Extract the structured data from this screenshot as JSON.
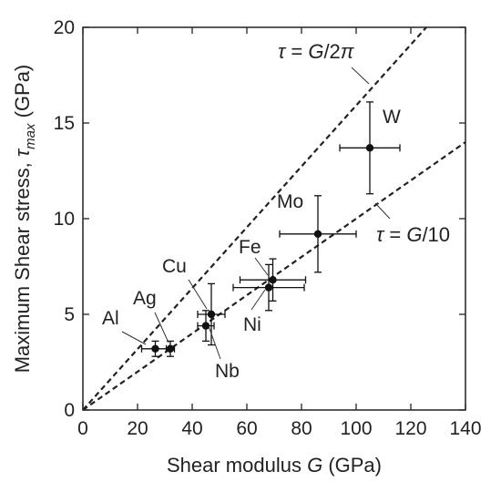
{
  "chart_data": {
    "type": "scatter",
    "xlabel_prefix": "Shear modulus ",
    "xlabel_var": "G",
    "xlabel_unit": " (GPa)",
    "ylabel_prefix": "Maximum Shear stress, ",
    "ylabel_var": "τ",
    "ylabel_sub": "max",
    "ylabel_unit": " (GPa)",
    "xlim": [
      0,
      140
    ],
    "ylim": [
      0,
      20
    ],
    "xticks": [
      0,
      20,
      40,
      60,
      80,
      100,
      120,
      140
    ],
    "yticks": [
      0,
      5,
      10,
      15,
      20
    ],
    "grid": false,
    "points": [
      {
        "label": "Al",
        "x": 26.5,
        "y": 3.2,
        "xerr": 5.0,
        "yerr": 0.4
      },
      {
        "label": "Ag",
        "x": 32.0,
        "y": 3.2,
        "xerr": 1.5,
        "yerr": 0.4
      },
      {
        "label": "Nb",
        "x": 45.0,
        "y": 4.4,
        "xerr": 3.0,
        "yerr": 0.8
      },
      {
        "label": "Cu",
        "x": 47.0,
        "y": 5.0,
        "xerr": 5.0,
        "yerr": 1.6
      },
      {
        "label": "Ni",
        "x": 68.0,
        "y": 6.4,
        "xerr": 13.0,
        "yerr": 1.2
      },
      {
        "label": "Fe",
        "x": 69.5,
        "y": 6.8,
        "xerr": 12.0,
        "yerr": 1.1
      },
      {
        "label": "Mo",
        "x": 86.0,
        "y": 9.2,
        "xerr": 14.0,
        "yerr": 2.0
      },
      {
        "label": "W",
        "x": 105.0,
        "y": 13.7,
        "xerr": 11.0,
        "yerr": 2.4
      }
    ],
    "lines": [
      {
        "label_tau": "τ",
        "label_eq": " = ",
        "label_var": "G",
        "label_rest": "/2",
        "label_pi": "π",
        "slope": 0.159155
      },
      {
        "label_tau": "τ",
        "label_eq": " = ",
        "label_var": "G",
        "label_rest": "/10",
        "label_pi": "",
        "slope": 0.1
      }
    ]
  },
  "colors": {
    "axis": "#222222",
    "marker": "#111111",
    "line": "#222222"
  }
}
